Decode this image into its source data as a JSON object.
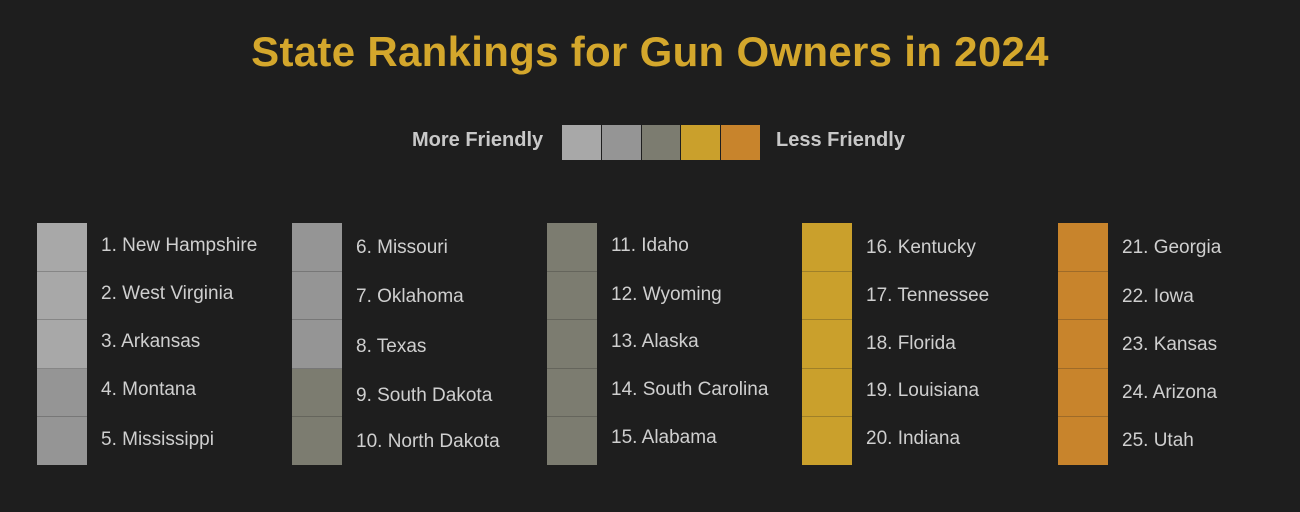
{
  "chart_data": {
    "type": "table",
    "title": "State Rankings for Gun Owners in 2024",
    "legend": {
      "left_label": "More Friendly",
      "right_label": "Less Friendly",
      "colors": [
        "#a8a8a8",
        "#959595",
        "#7c7c70",
        "#caa02c",
        "#c8842c"
      ]
    },
    "columns": [
      {
        "entries": [
          {
            "label": "1. New Hampshire",
            "color": "#a8a8a8"
          },
          {
            "label": "2. West Virginia",
            "color": "#a8a8a8"
          },
          {
            "label": "3. Arkansas",
            "color": "#a8a8a8"
          },
          {
            "label": "4. Montana",
            "color": "#959595"
          },
          {
            "label": "5. Mississippi",
            "color": "#959595"
          }
        ]
      },
      {
        "entries": [
          {
            "label": "6. Missouri",
            "color": "#959595"
          },
          {
            "label": "7. Oklahoma",
            "color": "#959595"
          },
          {
            "label": "8. Texas",
            "color": "#959595"
          },
          {
            "label": "9. South Dakota",
            "color": "#7c7c70"
          },
          {
            "label": "10. North Dakota",
            "color": "#7c7c70"
          }
        ]
      },
      {
        "entries": [
          {
            "label": "11. Idaho",
            "color": "#7c7c70"
          },
          {
            "label": "12. Wyoming",
            "color": "#7c7c70"
          },
          {
            "label": "13. Alaska",
            "color": "#7c7c70"
          },
          {
            "label": "14. South Carolina",
            "color": "#7c7c70"
          },
          {
            "label": "15. Alabama",
            "color": "#7c7c70"
          }
        ]
      },
      {
        "entries": [
          {
            "label": "16. Kentucky",
            "color": "#caa02c"
          },
          {
            "label": "17. Tennessee",
            "color": "#caa02c"
          },
          {
            "label": "18. Florida",
            "color": "#caa02c"
          },
          {
            "label": "19. Louisiana",
            "color": "#caa02c"
          },
          {
            "label": "20. Indiana",
            "color": "#caa02c"
          }
        ]
      },
      {
        "entries": [
          {
            "label": "21. Georgia",
            "color": "#c8842c"
          },
          {
            "label": "22. Iowa",
            "color": "#c8842c"
          },
          {
            "label": "23. Kansas",
            "color": "#c8842c"
          },
          {
            "label": "24. Arizona",
            "color": "#c8842c"
          },
          {
            "label": "25. Utah",
            "color": "#c8842c"
          }
        ]
      }
    ]
  }
}
